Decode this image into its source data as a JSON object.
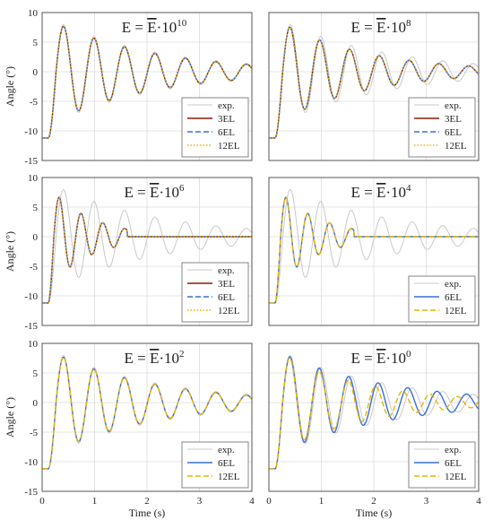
{
  "colors": {
    "exp": "#c9c9c9",
    "3EL": "#8b1a00",
    "6EL": "#3a6fd8",
    "12EL": "#e8b400",
    "grid": "#dcdcdc",
    "frame": "#555555"
  },
  "chart_data": [
    {
      "type": "line",
      "title_main": "E = ",
      "title_sym": "E",
      "title_dot": "·10",
      "title_exp": "10",
      "xlabel": "",
      "ylabel": "Angle (°)",
      "xlim": [
        0,
        4
      ],
      "ylim": [
        -15,
        10
      ],
      "xticks": [
        "0",
        "1",
        "2",
        "3",
        "4"
      ],
      "yticks": [
        "10",
        "5",
        "0",
        "-5",
        "-10",
        "-15"
      ],
      "grid": true,
      "legend": [
        "exp.",
        "3EL",
        "6EL",
        "12EL"
      ],
      "legend_position": "bottom-right",
      "series": [
        {
          "name": "exp.",
          "style": "solid",
          "y0": -11.2,
          "x_start": 0.12,
          "amp": 9.2,
          "freq": 1.72,
          "decay": 0.5,
          "settle": 4.0
        },
        {
          "name": "3EL",
          "style": "solid",
          "y0": -11.2,
          "x_start": 0.12,
          "amp": 8.9,
          "freq": 1.72,
          "decay": 0.52,
          "settle": 4.0
        },
        {
          "name": "6EL",
          "style": "dashed",
          "y0": -11.2,
          "x_start": 0.12,
          "amp": 8.9,
          "freq": 1.72,
          "decay": 0.52,
          "settle": 4.0
        },
        {
          "name": "12EL",
          "style": "dotted",
          "y0": -11.2,
          "x_start": 0.12,
          "amp": 8.9,
          "freq": 1.72,
          "decay": 0.52,
          "settle": 4.0
        }
      ]
    },
    {
      "type": "line",
      "title_main": "E = ",
      "title_sym": "E",
      "title_dot": "·10",
      "title_exp": "8",
      "xlabel": "",
      "ylabel": "",
      "xlim": [
        0,
        4
      ],
      "ylim": [
        -15,
        10
      ],
      "xticks": [
        "0",
        "1",
        "2",
        "3",
        "4"
      ],
      "yticks": [],
      "grid": true,
      "legend": [
        "exp.",
        "3EL",
        "6EL",
        "12EL"
      ],
      "legend_position": "bottom-right",
      "series": [
        {
          "name": "exp.",
          "style": "solid",
          "y0": -11.2,
          "x_start": 0.12,
          "amp": 9.2,
          "freq": 1.72,
          "decay": 0.5,
          "settle": 4.0
        },
        {
          "name": "3EL",
          "style": "solid",
          "y0": -11.2,
          "x_start": 0.12,
          "amp": 8.9,
          "freq": 1.76,
          "decay": 0.6,
          "settle": 4.0
        },
        {
          "name": "6EL",
          "style": "dashed",
          "y0": -11.2,
          "x_start": 0.12,
          "amp": 8.9,
          "freq": 1.76,
          "decay": 0.6,
          "settle": 4.0
        },
        {
          "name": "12EL",
          "style": "dotted",
          "y0": -11.2,
          "x_start": 0.12,
          "amp": 8.9,
          "freq": 1.76,
          "decay": 0.6,
          "settle": 4.0
        }
      ]
    },
    {
      "type": "line",
      "title_main": "E = ",
      "title_sym": "E",
      "title_dot": "·10",
      "title_exp": "6",
      "xlabel": "",
      "ylabel": "Angle (°)",
      "xlim": [
        0,
        4
      ],
      "ylim": [
        -15,
        10
      ],
      "xticks": [
        "0",
        "1",
        "2",
        "3",
        "4"
      ],
      "yticks": [
        "10",
        "5",
        "0",
        "-5",
        "-10",
        "-15"
      ],
      "grid": true,
      "legend": [
        "exp.",
        "3EL",
        "6EL",
        "12EL"
      ],
      "legend_position": "bottom-right",
      "series": [
        {
          "name": "exp.",
          "style": "solid",
          "y0": -11.2,
          "x_start": 0.12,
          "amp": 9.2,
          "freq": 1.72,
          "decay": 0.5,
          "settle": 4.0
        },
        {
          "name": "3EL",
          "style": "solid",
          "y0": -11.2,
          "x_start": 0.12,
          "amp": 8.6,
          "freq": 2.4,
          "decay": 1.25,
          "settle": 1.5
        },
        {
          "name": "6EL",
          "style": "dashed",
          "y0": -11.2,
          "x_start": 0.12,
          "amp": 8.6,
          "freq": 2.4,
          "decay": 1.25,
          "settle": 1.5
        },
        {
          "name": "12EL",
          "style": "dotted",
          "y0": -11.2,
          "x_start": 0.12,
          "amp": 8.6,
          "freq": 2.4,
          "decay": 1.25,
          "settle": 1.5
        }
      ]
    },
    {
      "type": "line",
      "title_main": "E = ",
      "title_sym": "E",
      "title_dot": "·10",
      "title_exp": "4",
      "xlabel": "",
      "ylabel": "",
      "xlim": [
        0,
        4
      ],
      "ylim": [
        -15,
        10
      ],
      "xticks": [
        "0",
        "1",
        "2",
        "3",
        "4"
      ],
      "yticks": [],
      "grid": true,
      "legend": [
        "exp.",
        "6EL",
        "12EL"
      ],
      "legend_position": "bottom-right",
      "series": [
        {
          "name": "exp.",
          "style": "solid",
          "y0": -11.2,
          "x_start": 0.12,
          "amp": 9.2,
          "freq": 1.72,
          "decay": 0.5,
          "settle": 4.0
        },
        {
          "name": "6EL",
          "style": "solid",
          "y0": -11.2,
          "x_start": 0.12,
          "amp": 8.6,
          "freq": 2.4,
          "decay": 1.25,
          "settle": 1.5
        },
        {
          "name": "12EL",
          "style": "dashed",
          "y0": -11.2,
          "x_start": 0.12,
          "amp": 8.6,
          "freq": 2.4,
          "decay": 1.25,
          "settle": 1.5
        }
      ]
    },
    {
      "type": "line",
      "title_main": "E = ",
      "title_sym": "E",
      "title_dot": "·10",
      "title_exp": "2",
      "xlabel": "Time (s)",
      "ylabel": "Angle (°)",
      "xlim": [
        0,
        4
      ],
      "ylim": [
        -15,
        10
      ],
      "xticks": [
        "0",
        "1",
        "2",
        "3",
        "4"
      ],
      "yticks": [
        "10",
        "5",
        "0",
        "-5",
        "-10",
        "-15"
      ],
      "grid": true,
      "legend": [
        "exp.",
        "6EL",
        "12EL"
      ],
      "legend_position": "bottom-right",
      "series": [
        {
          "name": "exp.",
          "style": "solid",
          "y0": -11.2,
          "x_start": 0.12,
          "amp": 9.2,
          "freq": 1.72,
          "decay": 0.5,
          "settle": 4.0
        },
        {
          "name": "6EL",
          "style": "solid",
          "y0": -11.2,
          "x_start": 0.12,
          "amp": 8.9,
          "freq": 1.72,
          "decay": 0.52,
          "settle": 4.0
        },
        {
          "name": "12EL",
          "style": "dashed",
          "y0": -11.2,
          "x_start": 0.12,
          "amp": 8.9,
          "freq": 1.72,
          "decay": 0.52,
          "settle": 4.0
        }
      ]
    },
    {
      "type": "line",
      "title_main": "E = ",
      "title_sym": "E",
      "title_dot": "·10",
      "title_exp": "0",
      "xlabel": "Time (s)",
      "ylabel": "",
      "xlim": [
        0,
        4
      ],
      "ylim": [
        -15,
        10
      ],
      "xticks": [
        "0",
        "1",
        "2",
        "3",
        "4"
      ],
      "yticks": [],
      "grid": true,
      "legend": [
        "exp.",
        "6EL",
        "12EL"
      ],
      "legend_position": "bottom-right",
      "series": [
        {
          "name": "exp.",
          "style": "solid",
          "y0": -11.2,
          "x_start": 0.12,
          "amp": 9.2,
          "freq": 1.72,
          "decay": 0.5,
          "settle": 4.0
        },
        {
          "name": "6EL",
          "style": "solid",
          "y0": -11.2,
          "x_start": 0.12,
          "amp": 8.9,
          "freq": 1.78,
          "decay": 0.5,
          "settle": 4.0
        },
        {
          "name": "12EL",
          "style": "dashed",
          "y0": -11.2,
          "x_start": 0.12,
          "amp": 8.9,
          "freq": 1.78,
          "decay": 0.62,
          "settle": 4.0,
          "phase_shift_after": 1.3
        }
      ]
    }
  ]
}
